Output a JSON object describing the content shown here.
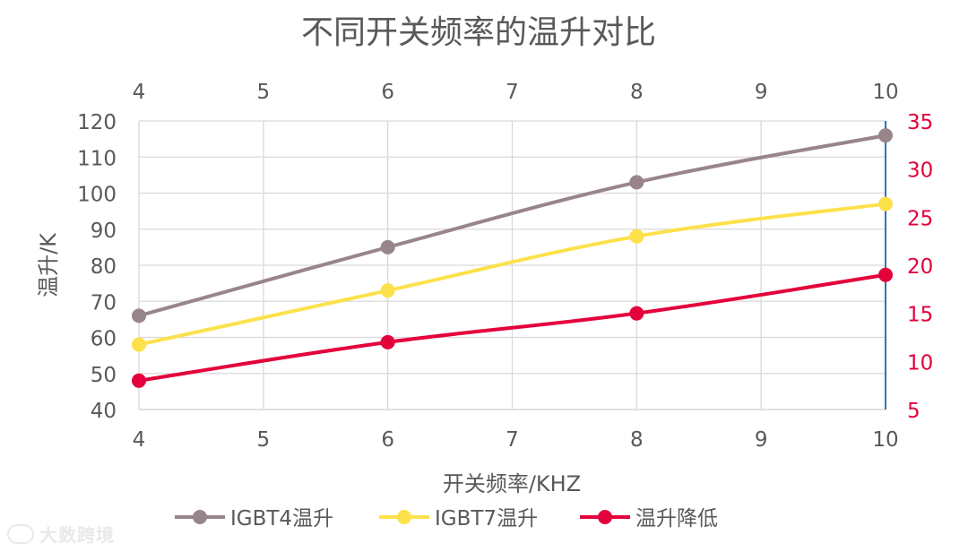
{
  "chart_data": {
    "type": "line",
    "title": "不同开关频率的温升对比",
    "xlabel": "开关频率/KHZ",
    "ylabel": "温升/K",
    "x": [
      4,
      6,
      8,
      10
    ],
    "xlim": [
      4,
      10
    ],
    "xticks": [
      "4",
      "5",
      "6",
      "7",
      "8",
      "9",
      "10"
    ],
    "top_xticks": [
      "4",
      "5",
      "6",
      "7",
      "8",
      "9",
      "10"
    ],
    "ylim": [
      40,
      120
    ],
    "yticks": [
      "40",
      "50",
      "60",
      "70",
      "80",
      "90",
      "100",
      "110",
      "120"
    ],
    "y2lim": [
      5,
      35
    ],
    "y2ticks": [
      "5",
      "10",
      "15",
      "20",
      "25",
      "30",
      "35"
    ],
    "grid": true,
    "legend_position": "bottom",
    "series": [
      {
        "name": "IGBT4温升",
        "axis": "left",
        "color": "#98858a",
        "values": [
          66,
          85,
          103,
          116
        ]
      },
      {
        "name": "IGBT7温升",
        "axis": "left",
        "color": "#fde14b",
        "values": [
          58,
          73,
          88,
          97
        ]
      },
      {
        "name": "温升降低",
        "axis": "right",
        "color": "#e4003b",
        "values": [
          8,
          12,
          15,
          19
        ]
      }
    ],
    "colors": {
      "text": "#595959",
      "right_axis_text": "#e4003b",
      "right_axis_line": "#2e75b6",
      "grid": "#d9d9d9"
    }
  },
  "watermark": {
    "text": "大数跨境"
  }
}
